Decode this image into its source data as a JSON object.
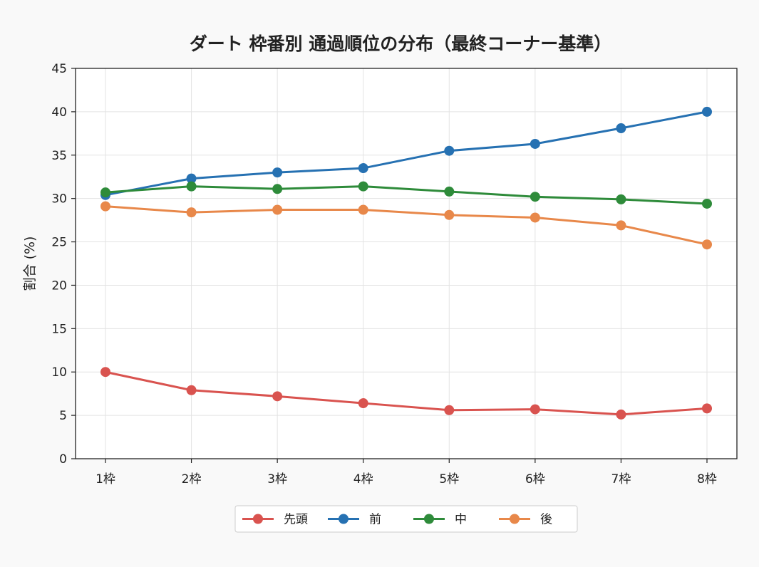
{
  "chart_data": {
    "type": "line",
    "title": "ダート 枠番別 通過順位の分布（最終コーナー基準）",
    "xlabel": "",
    "ylabel": "割合 (%)",
    "categories": [
      "1枠",
      "2枠",
      "3枠",
      "4枠",
      "5枠",
      "6枠",
      "7枠",
      "8枠"
    ],
    "ylim": [
      0,
      45
    ],
    "yticks": [
      0,
      5,
      10,
      15,
      20,
      25,
      30,
      35,
      40,
      45
    ],
    "grid": true,
    "legend_position": "bottom",
    "series": [
      {
        "name": "先頭",
        "color": "#d9534f",
        "values": [
          10.0,
          7.9,
          7.2,
          6.4,
          5.6,
          5.7,
          5.1,
          5.8
        ]
      },
      {
        "name": "前",
        "color": "#2671b2",
        "values": [
          30.4,
          32.3,
          33.0,
          33.5,
          35.5,
          36.3,
          38.1,
          40.0
        ]
      },
      {
        "name": "中",
        "color": "#2e8b3a",
        "values": [
          30.7,
          31.4,
          31.1,
          31.4,
          30.8,
          30.2,
          29.9,
          29.4
        ]
      },
      {
        "name": "後",
        "color": "#e8884a",
        "values": [
          29.1,
          28.4,
          28.7,
          28.7,
          28.1,
          27.8,
          26.9,
          24.7
        ]
      }
    ]
  }
}
